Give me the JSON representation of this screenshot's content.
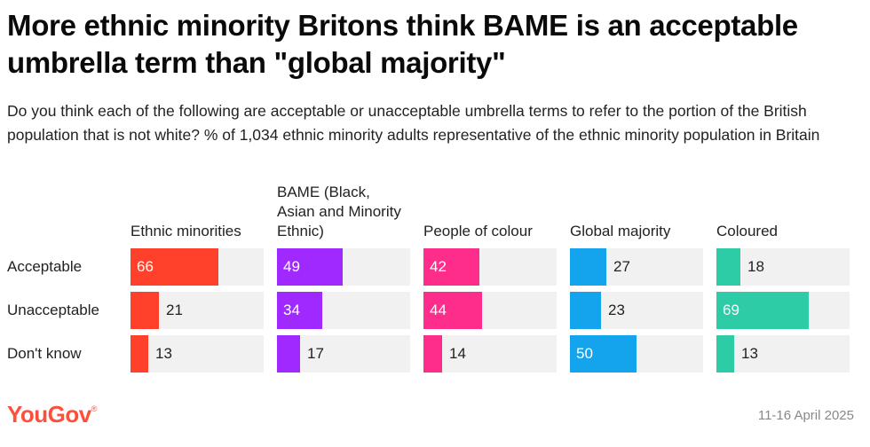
{
  "title": "More ethnic minority Britons think BAME is an acceptable umbrella term than \"global majority\"",
  "subtitle": "Do you think each of the following are acceptable or unacceptable umbrella terms to refer to the portion of the British population that is not white? % of 1,034 ethnic minority adults representative of the ethnic minority population in Britain",
  "brand": "YouGov",
  "brand_mark": "®",
  "date": "11-16 April 2025",
  "chart_data": {
    "type": "bar",
    "title": "More ethnic minority Britons think BAME is an acceptable umbrella term than \"global majority\"",
    "row_categories": [
      "Acceptable",
      "Unacceptable",
      "Don't know"
    ],
    "value_max": 100,
    "series": [
      {
        "name": "Ethnic minorities",
        "color": "#ff412c",
        "values": [
          66,
          21,
          13
        ]
      },
      {
        "name": "BAME (Black, Asian and Minority Ethnic)",
        "color": "#9f29ff",
        "values": [
          49,
          34,
          17
        ]
      },
      {
        "name": "People of colour",
        "color": "#fe2c8b",
        "values": [
          42,
          44,
          14
        ]
      },
      {
        "name": "Global majority",
        "color": "#14a3ed",
        "values": [
          27,
          23,
          50
        ]
      },
      {
        "name": "Coloured",
        "color": "#2dcca6",
        "values": [
          18,
          69,
          13
        ]
      }
    ]
  }
}
